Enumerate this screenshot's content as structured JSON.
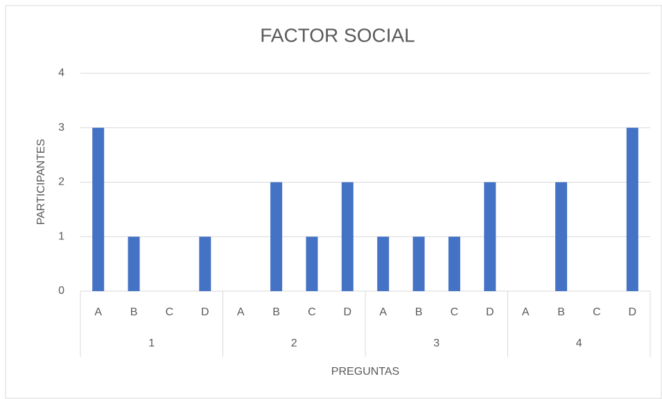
{
  "chart_data": {
    "type": "bar",
    "title": "FACTOR SOCIAL",
    "x_label": "PREGUNTAS",
    "y_label": "PARTICIPANTES",
    "categories": [
      "A",
      "B",
      "C",
      "D",
      "A",
      "B",
      "C",
      "D",
      "A",
      "B",
      "C",
      "D",
      "A",
      "B",
      "C",
      "D"
    ],
    "groups": [
      "1",
      "2",
      "3",
      "4"
    ],
    "values": [
      3,
      1,
      0,
      1,
      0,
      2,
      1,
      2,
      1,
      1,
      1,
      2,
      0,
      2,
      0,
      3
    ],
    "color": "#4472c4",
    "ylim": [
      0,
      4
    ],
    "yticks": [
      0,
      1,
      2,
      3,
      4
    ],
    "grid": true
  }
}
